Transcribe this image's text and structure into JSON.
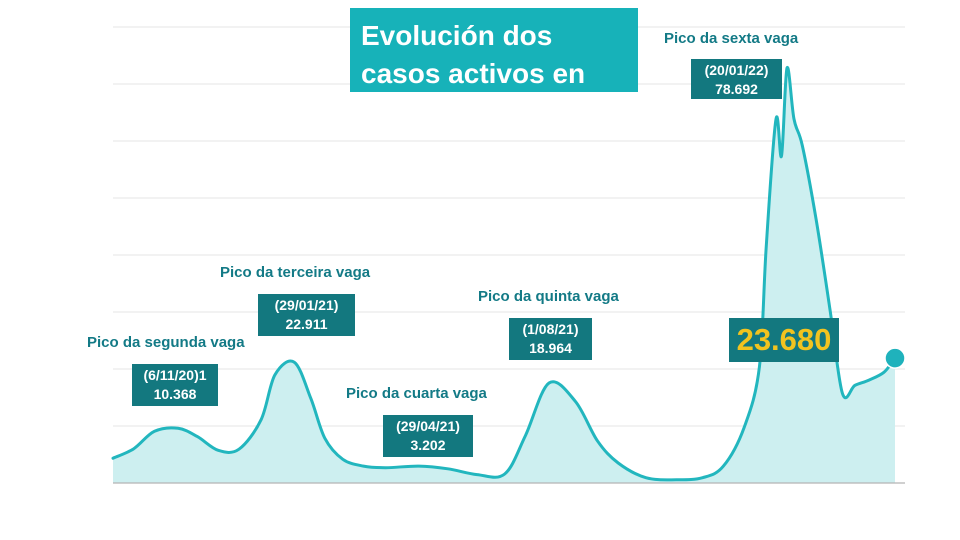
{
  "title": "Evolución dos casos activos en Galicia",
  "current_label": "23.680",
  "colors": {
    "accent": "#22b6be",
    "fill": "#cdeff0",
    "box": "#13787f",
    "highlight": "#f2c31f"
  },
  "peaks": [
    {
      "title": "Pico da segunda vaga",
      "date": "(6/11/20)1",
      "value_label": "10.368"
    },
    {
      "title": "Pico da terceira vaga",
      "date": "(29/01/21)",
      "value_label": "22.911"
    },
    {
      "title": "Pico da cuarta vaga",
      "date": "(29/04/21)",
      "value_label": "3.202"
    },
    {
      "title": "Pico da quinta vaga",
      "date": "(1/08/21)",
      "value_label": "18.964"
    },
    {
      "title": "Pico da sexta vaga",
      "date": "(20/01/22)",
      "value_label": "78.692"
    }
  ],
  "chart_data": {
    "type": "area",
    "title": "Evolución dos casos activos en Galicia",
    "xlabel": "",
    "ylabel": "",
    "grid": true,
    "ylim": [
      0,
      84000
    ],
    "x": [
      "2020-09-20",
      "2020-10-05",
      "2020-10-20",
      "2020-11-06",
      "2020-11-20",
      "2020-12-05",
      "2020-12-20",
      "2021-01-05",
      "2021-01-15",
      "2021-01-29",
      "2021-02-10",
      "2021-02-20",
      "2021-03-05",
      "2021-03-20",
      "2021-04-05",
      "2021-04-29",
      "2021-05-20",
      "2021-06-10",
      "2021-06-30",
      "2021-07-15",
      "2021-08-01",
      "2021-08-20",
      "2021-09-05",
      "2021-09-20",
      "2021-10-10",
      "2021-11-01",
      "2021-11-20",
      "2021-12-05",
      "2021-12-20",
      "2021-12-31",
      "2022-01-05",
      "2022-01-12",
      "2022-01-16",
      "2022-01-20",
      "2022-01-25",
      "2022-01-31",
      "2022-02-10",
      "2022-02-20",
      "2022-03-01",
      "2022-03-10",
      "2022-03-20",
      "2022-03-31",
      "2022-04-08"
    ],
    "series": [
      {
        "values": [
          4700,
          6500,
          9800,
          10368,
          8800,
          6200,
          6400,
          12000,
          20500,
          22911,
          16000,
          8500,
          4500,
          3200,
          2900,
          3202,
          2700,
          1600,
          1700,
          9000,
          18964,
          15500,
          8000,
          3800,
          1000,
          600,
          1000,
          3200,
          10500,
          22000,
          45000,
          69000,
          62000,
          78692,
          69000,
          64000,
          50000,
          33000,
          17000,
          18500,
          19500,
          21000,
          23680
        ]
      }
    ]
  }
}
